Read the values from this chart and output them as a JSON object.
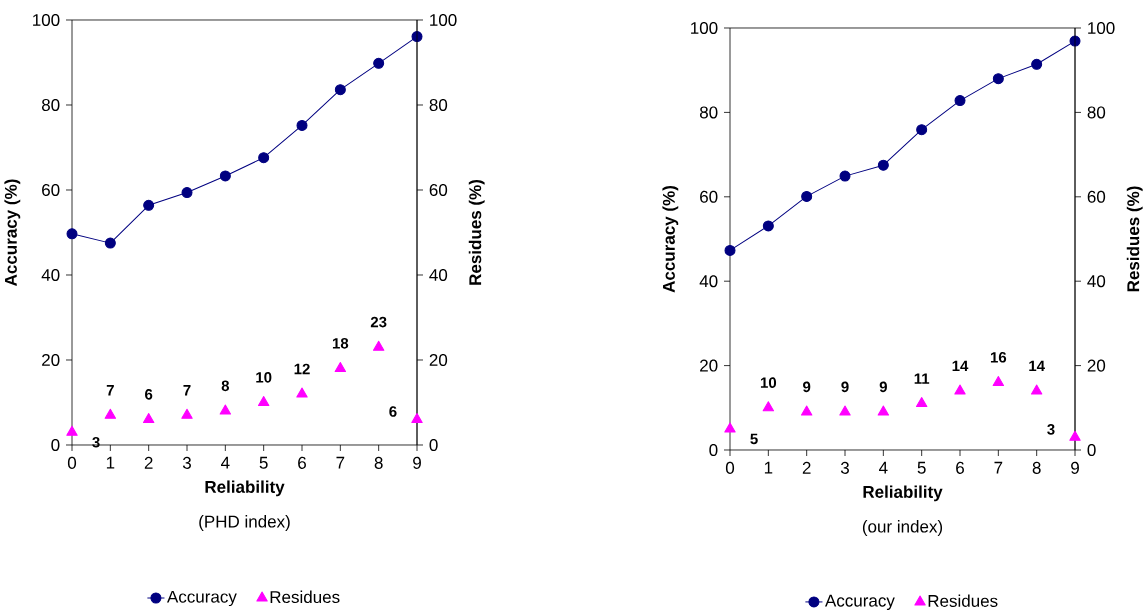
{
  "chart_data": [
    {
      "type": "line",
      "xlabel": "Reliability",
      "ylabel": "Accuracy (%)",
      "y2label": "Residues (%)",
      "annotations": [
        "(PHD index)"
      ],
      "x": [
        0,
        1,
        2,
        3,
        4,
        5,
        6,
        7,
        8,
        9
      ],
      "xlim": [
        0,
        9
      ],
      "xticks": [
        0,
        1,
        2,
        3,
        4,
        5,
        6,
        7,
        8,
        9
      ],
      "ylim": [
        0,
        100
      ],
      "yticks": [
        0,
        20,
        40,
        60,
        80,
        100
      ],
      "y2lim": [
        0,
        100
      ],
      "y2ticks": [
        0,
        20,
        40,
        60,
        80,
        100
      ],
      "legend": "bottom",
      "series": [
        {
          "name": "Accuracy",
          "marker": "circle",
          "color": "#000080",
          "values": [
            49.7,
            47.5,
            56.4,
            59.4,
            63.3,
            67.6,
            75.2,
            83.6,
            89.8,
            96.1
          ]
        },
        {
          "name": "Residues",
          "type": "scatter",
          "marker": "triangle",
          "axis": "y2",
          "color": "#ff00ff",
          "values": [
            3,
            7,
            6,
            7,
            8,
            10,
            12,
            18,
            23,
            6
          ],
          "value_labels": [
            "3",
            "7",
            "6",
            "7",
            "8",
            "10",
            "12",
            "18",
            "23",
            "6"
          ]
        }
      ]
    },
    {
      "type": "line",
      "xlabel": "Reliability",
      "ylabel": "Accuracy (%)",
      "y2label": "Residues (%)",
      "annotations": [
        "(our index)"
      ],
      "x": [
        0,
        1,
        2,
        3,
        4,
        5,
        6,
        7,
        8,
        9
      ],
      "xlim": [
        0,
        9
      ],
      "xticks": [
        0,
        1,
        2,
        3,
        4,
        5,
        6,
        7,
        8,
        9
      ],
      "ylim": [
        0,
        100
      ],
      "yticks": [
        0,
        20,
        40,
        60,
        80,
        100
      ],
      "y2lim": [
        0,
        100
      ],
      "y2ticks": [
        0,
        20,
        40,
        60,
        80,
        100
      ],
      "legend": "bottom",
      "series": [
        {
          "name": "Accuracy",
          "marker": "circle",
          "color": "#000080",
          "values": [
            47.3,
            53.1,
            60.1,
            64.9,
            67.5,
            75.9,
            82.8,
            88.0,
            91.4,
            96.9
          ]
        },
        {
          "name": "Residues",
          "type": "scatter",
          "marker": "triangle",
          "axis": "y2",
          "color": "#ff00ff",
          "values": [
            5,
            10,
            9,
            9,
            9,
            11,
            14,
            16,
            14,
            3
          ],
          "value_labels": [
            "5",
            "10",
            "9",
            "9",
            "9",
            "11",
            "14",
            "16",
            "14",
            "3"
          ]
        }
      ]
    }
  ]
}
